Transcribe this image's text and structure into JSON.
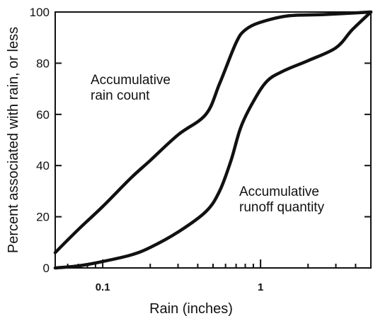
{
  "chart_data": {
    "type": "line",
    "xlabel": "Rain (inches)",
    "ylabel": "Percent associated with rain, or less",
    "x_scale": "log",
    "xlim": [
      0.05,
      5
    ],
    "ylim": [
      0,
      100
    ],
    "x_ticks": [
      0.1,
      1
    ],
    "x_tick_labels": [
      "0.1",
      "1"
    ],
    "y_ticks": [
      0,
      20,
      40,
      60,
      80,
      100
    ],
    "y_tick_labels": [
      "0",
      "20",
      "40",
      "60",
      "80",
      "100"
    ],
    "grid": false,
    "annotations": [
      {
        "lines": [
          "Accumulative",
          "rain count"
        ]
      },
      {
        "lines": [
          "Accumulative",
          "runoff quantity"
        ]
      }
    ],
    "series": [
      {
        "points": [
          [
            0.05,
            6
          ],
          [
            0.07,
            15
          ],
          [
            0.1,
            24
          ],
          [
            0.15,
            35
          ],
          [
            0.2,
            42
          ],
          [
            0.3,
            52
          ],
          [
            0.45,
            60
          ],
          [
            0.55,
            72
          ],
          [
            0.7,
            88
          ],
          [
            0.8,
            93
          ],
          [
            1.0,
            96
          ],
          [
            1.5,
            98.5
          ],
          [
            2.5,
            99
          ],
          [
            5,
            100
          ]
        ]
      },
      {
        "points": [
          [
            0.05,
            0
          ],
          [
            0.07,
            0.8
          ],
          [
            0.1,
            2.5
          ],
          [
            0.15,
            5
          ],
          [
            0.2,
            8
          ],
          [
            0.3,
            14
          ],
          [
            0.45,
            22
          ],
          [
            0.55,
            30
          ],
          [
            0.65,
            42
          ],
          [
            0.75,
            55
          ],
          [
            0.9,
            65
          ],
          [
            1.1,
            73
          ],
          [
            1.4,
            77
          ],
          [
            2.0,
            81
          ],
          [
            3.0,
            86
          ],
          [
            3.8,
            93
          ],
          [
            5,
            100
          ]
        ]
      }
    ]
  }
}
